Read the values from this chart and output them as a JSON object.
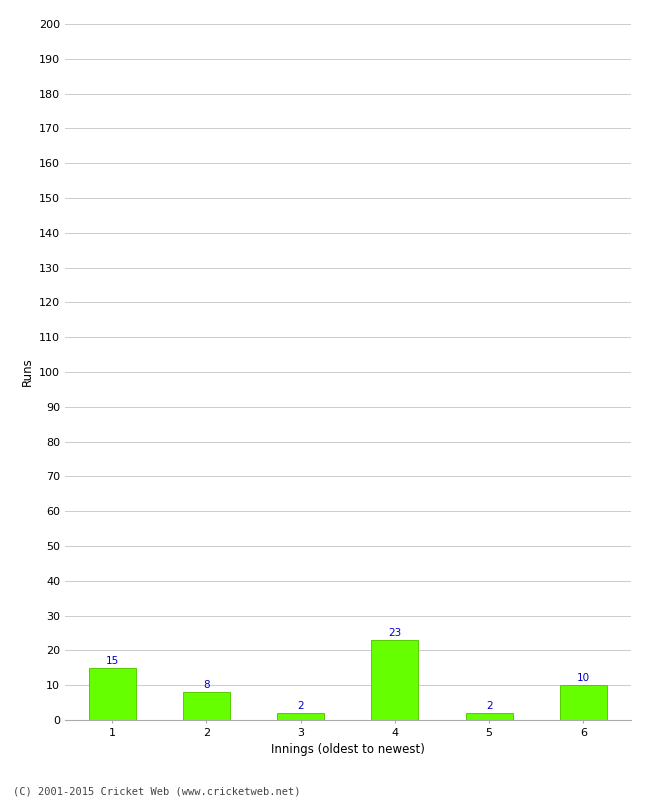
{
  "categories": [
    1,
    2,
    3,
    4,
    5,
    6
  ],
  "values": [
    15,
    8,
    2,
    23,
    2,
    10
  ],
  "bar_color": "#66ff00",
  "bar_edge_color": "#55cc00",
  "label_color": "#0000cc",
  "xlabel": "Innings (oldest to newest)",
  "ylabel": "Runs",
  "ylim": [
    0,
    200
  ],
  "yticks": [
    0,
    10,
    20,
    30,
    40,
    50,
    60,
    70,
    80,
    90,
    100,
    110,
    120,
    130,
    140,
    150,
    160,
    170,
    180,
    190,
    200
  ],
  "grid_color": "#cccccc",
  "background_color": "#ffffff",
  "footer": "(C) 2001-2015 Cricket Web (www.cricketweb.net)",
  "label_fontsize": 7.5,
  "axis_tick_fontsize": 8,
  "axis_label_fontsize": 8.5,
  "footer_fontsize": 7.5,
  "bar_width": 0.5
}
